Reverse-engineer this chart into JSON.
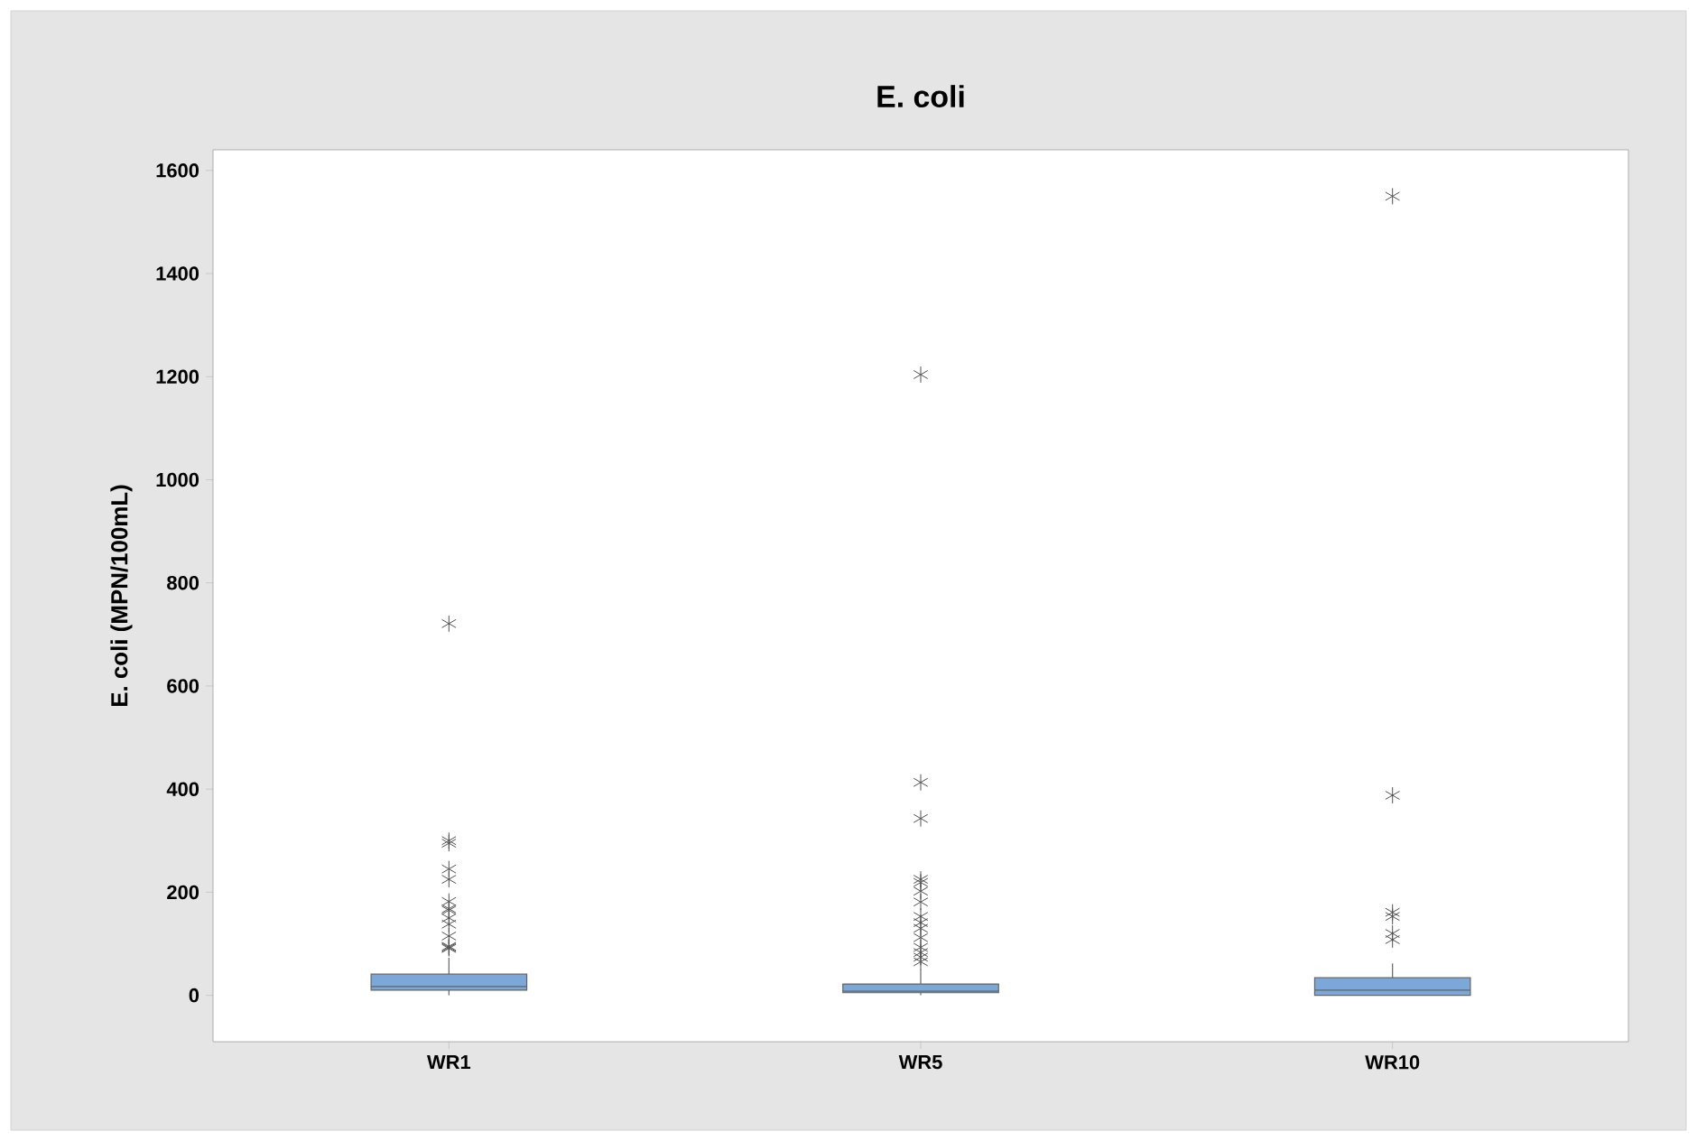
{
  "chart_data": {
    "type": "box",
    "title": "E. coli",
    "ylabel": "E. coli (MPN/100mL)",
    "categories": [
      "WR1",
      "WR5",
      "WR10"
    ],
    "color": "#7ba7d9",
    "marker": "star",
    "grid": false,
    "ylim": [
      -90,
      1640
    ],
    "yticks": [
      0,
      200,
      400,
      600,
      800,
      1000,
      1200,
      1400,
      1600
    ],
    "boxes": [
      {
        "low": 0,
        "q1": 10,
        "median": 17,
        "q3": 41,
        "high": 73,
        "outliers": [
          721,
          300,
          295,
          245,
          225,
          182,
          168,
          165,
          150,
          138,
          115,
          91,
          93,
          95
        ]
      },
      {
        "low": 0,
        "q1": 5,
        "median": 8,
        "q3": 22,
        "high": 50,
        "outliers": [
          1204,
          413,
          343,
          225,
          219,
          202,
          181,
          153,
          141,
          130,
          112,
          93,
          83,
          74,
          65
        ]
      },
      {
        "low": 0,
        "q1": 0,
        "median": 10,
        "q3": 34,
        "high": 62,
        "outliers": [
          1550,
          388,
          161,
          153,
          120,
          108
        ]
      }
    ]
  }
}
